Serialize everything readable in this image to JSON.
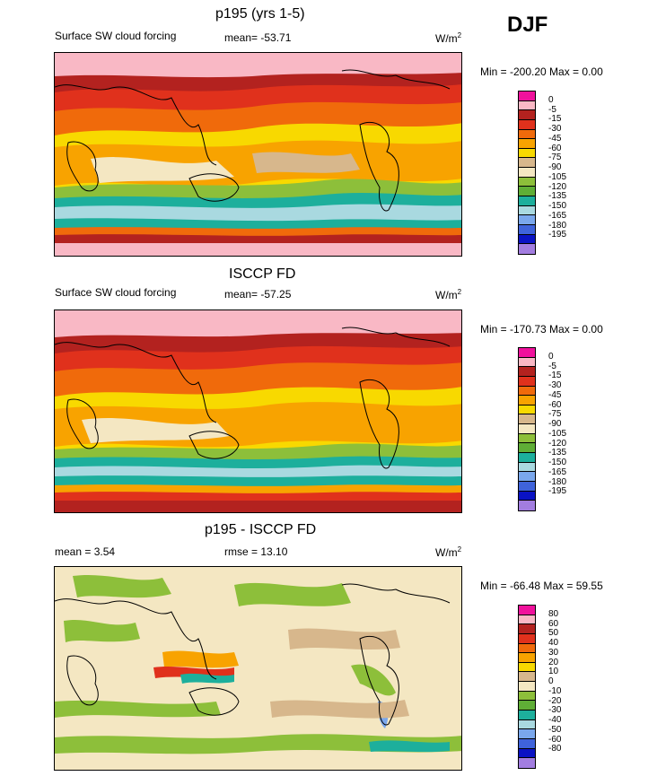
{
  "season": "DJF",
  "panels": [
    {
      "title": "p195 (yrs 1-5)",
      "left_label": "Surface SW cloud forcing",
      "center_label": "mean= -53.71",
      "units": "W/m",
      "units_sup": "2",
      "minmax": "Min = -200.20 Max =   0.00"
    },
    {
      "title": "ISCCP FD",
      "left_label": "Surface SW cloud forcing",
      "center_label": "mean= -57.25",
      "units": "W/m",
      "units_sup": "2",
      "minmax": "Min = -170.73 Max =   0.00"
    },
    {
      "title": "p195 - ISCCP FD",
      "left_label": "mean =   3.54",
      "center_label": "rmse =  13.10",
      "units": "W/m",
      "units_sup": "2",
      "minmax": "Min = -66.48 Max =  59.55"
    }
  ],
  "colorbars": {
    "cloud_forcing": {
      "colors": [
        "#f0119c",
        "#f9b8c5",
        "#b3221f",
        "#e0311c",
        "#f06a0b",
        "#f8a300",
        "#f8d900",
        "#d7b78c",
        "#f4e7c2",
        "#8dbf3a",
        "#5fae36",
        "#1daf9c",
        "#a9d9e0",
        "#7aa7ec",
        "#3f63db",
        "#0a12c4",
        "#a27de0"
      ],
      "labels": [
        "0",
        "-5",
        "-15",
        "-30",
        "-45",
        "-60",
        "-75",
        "-90",
        "-105",
        "-120",
        "-135",
        "-150",
        "-165",
        "-180",
        "-195"
      ]
    },
    "difference": {
      "colors": [
        "#f0119c",
        "#f9b8c5",
        "#b3221f",
        "#e0311c",
        "#f06a0b",
        "#f8a300",
        "#f8d900",
        "#d7b78c",
        "#f4e7c2",
        "#8dbf3a",
        "#5fae36",
        "#1daf9c",
        "#a9d9e0",
        "#7aa7ec",
        "#3f63db",
        "#0a12c4",
        "#a27de0"
      ],
      "labels": [
        "80",
        "60",
        "50",
        "40",
        "30",
        "20",
        "10",
        "0",
        "-10",
        "-20",
        "-30",
        "-40",
        "-50",
        "-60",
        "-80"
      ]
    }
  },
  "chart_data": [
    {
      "type": "heatmap",
      "title": "p195 (yrs 1-5)",
      "variable": "Surface SW cloud forcing",
      "season": "DJF",
      "units": "W/m2",
      "mean": -53.71,
      "min": -200.2,
      "max": 0.0,
      "levels": [
        0,
        -5,
        -15,
        -30,
        -45,
        -60,
        -75,
        -90,
        -105,
        -120,
        -135,
        -150,
        -165,
        -180,
        -195
      ]
    },
    {
      "type": "heatmap",
      "title": "ISCCP FD",
      "variable": "Surface SW cloud forcing",
      "season": "DJF",
      "units": "W/m2",
      "mean": -57.25,
      "min": -170.73,
      "max": 0.0,
      "levels": [
        0,
        -5,
        -15,
        -30,
        -45,
        -60,
        -75,
        -90,
        -105,
        -120,
        -135,
        -150,
        -165,
        -180,
        -195
      ]
    },
    {
      "type": "heatmap",
      "title": "p195 - ISCCP FD",
      "season": "DJF",
      "units": "W/m2",
      "mean": 3.54,
      "rmse": 13.1,
      "min": -66.48,
      "max": 59.55,
      "levels": [
        80,
        60,
        50,
        40,
        30,
        20,
        10,
        0,
        -10,
        -20,
        -30,
        -40,
        -50,
        -60,
        -80
      ]
    }
  ]
}
